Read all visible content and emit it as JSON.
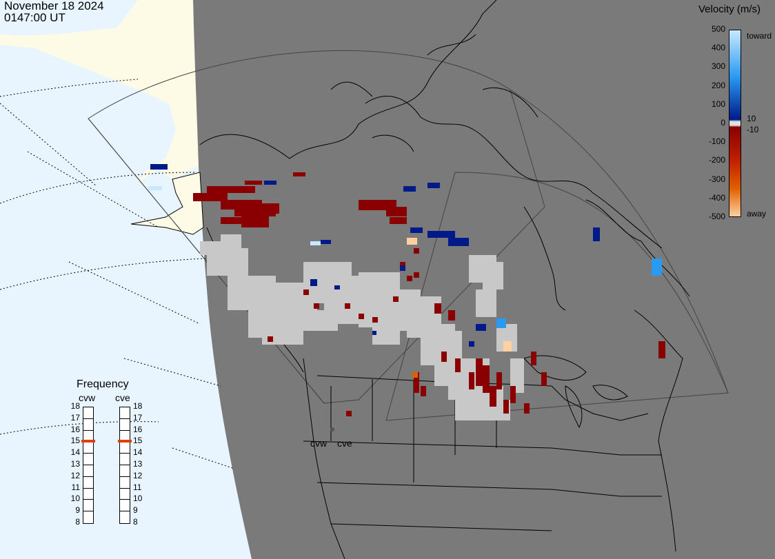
{
  "header": {
    "date": "November 18 2024",
    "time": "0147:00 UT"
  },
  "colorbar": {
    "title": "Velocity (m/s)",
    "ticks": [
      "500",
      "400",
      "300",
      "200",
      "100",
      "0",
      "-100",
      "-200",
      "-300",
      "-400",
      "-500"
    ],
    "small_ticks": [
      "10",
      "-10"
    ],
    "toward_label": "toward",
    "away_label": "away",
    "colors": {
      "toward_high": "#c8e8ff",
      "toward_mid": "#2a9af0",
      "toward_low": "#001a8a",
      "away_low": "#8a0000",
      "away_mid": "#e06000",
      "away_high": "#ffd0a0",
      "ground_scatter": "#c8c8c8"
    }
  },
  "map": {
    "radars": [
      {
        "name": "cvw"
      },
      {
        "name": "cve"
      }
    ],
    "land_color": "#7a7a7a",
    "ocean_color": "#e8f5ff",
    "ice_color": "#fdfbe6"
  },
  "frequency": {
    "title": "Frequency",
    "cvw_label": "cvw",
    "cve_label": "cve",
    "scale": [
      "18",
      "17",
      "16",
      "15",
      "14",
      "13",
      "12",
      "11",
      "10",
      "9",
      "8"
    ],
    "cvw_value_mhz": 15,
    "cve_value_mhz": 15,
    "indicator_color": "#e04010"
  }
}
